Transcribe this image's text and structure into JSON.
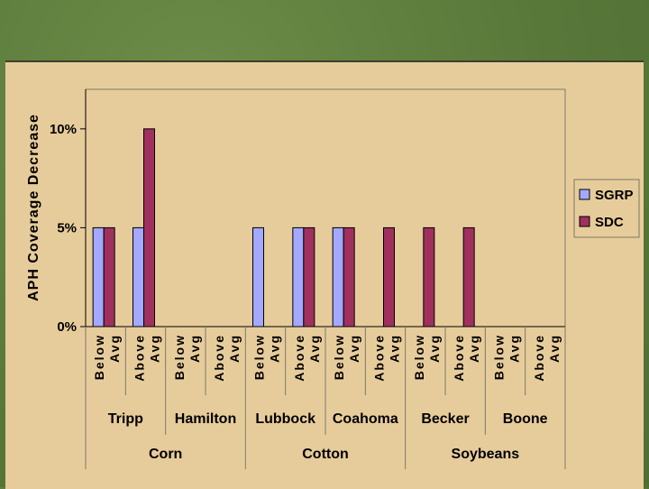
{
  "colors": {
    "SGRP": "#a4a8ff",
    "SDC": "#a0305e",
    "frame": "#7a7a6a",
    "grid": "#000000"
  },
  "chart_data": {
    "type": "bar",
    "ylabel": "APH Coverage Decrease",
    "yticks": [
      "0%",
      "5%",
      "10%"
    ],
    "ylim": [
      0,
      12
    ],
    "legend_position": "right",
    "grid": false,
    "categories": [
      {
        "sub": [
          "Below",
          "Avg"
        ],
        "location": "Tripp",
        "crop": "Corn"
      },
      {
        "sub": [
          "Above",
          "Avg"
        ],
        "location": "Tripp",
        "crop": "Corn"
      },
      {
        "sub": [
          "Below",
          "Avg"
        ],
        "location": "Hamilton",
        "crop": "Corn"
      },
      {
        "sub": [
          "Above",
          "Avg"
        ],
        "location": "Hamilton",
        "crop": "Corn"
      },
      {
        "sub": [
          "Below",
          "Avg"
        ],
        "location": "Lubbock",
        "crop": "Cotton"
      },
      {
        "sub": [
          "Above",
          "Avg"
        ],
        "location": "Lubbock",
        "crop": "Cotton"
      },
      {
        "sub": [
          "Below",
          "Avg"
        ],
        "location": "Coahoma",
        "crop": "Cotton"
      },
      {
        "sub": [
          "Above",
          "Avg"
        ],
        "location": "Coahoma",
        "crop": "Cotton"
      },
      {
        "sub": [
          "Below",
          "Avg"
        ],
        "location": "Becker",
        "crop": "Soybeans"
      },
      {
        "sub": [
          "Above",
          "Avg"
        ],
        "location": "Becker",
        "crop": "Soybeans"
      },
      {
        "sub": [
          "Below",
          "Avg"
        ],
        "location": "Boone",
        "crop": "Soybeans"
      },
      {
        "sub": [
          "Above",
          "Avg"
        ],
        "location": "Boone",
        "crop": "Soybeans"
      }
    ],
    "locations": [
      "Tripp",
      "Hamilton",
      "Lubbock",
      "Coahoma",
      "Becker",
      "Boone"
    ],
    "crops": [
      "Corn",
      "Cotton",
      "Soybeans"
    ],
    "series": [
      {
        "name": "SGRP",
        "values": [
          5,
          5,
          0,
          0,
          5,
          5,
          5,
          0,
          0,
          0,
          0,
          0
        ]
      },
      {
        "name": "SDC",
        "values": [
          5,
          10,
          0,
          0,
          0,
          5,
          5,
          5,
          5,
          5,
          0,
          0
        ]
      }
    ]
  }
}
